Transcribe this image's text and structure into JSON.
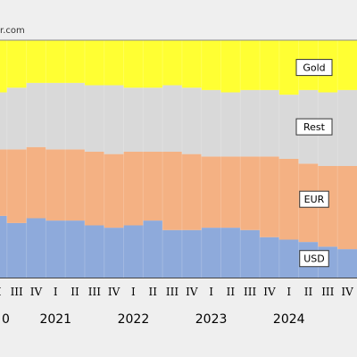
{
  "source_text": "r.com",
  "chart_data": {
    "type": "area",
    "stacked": true,
    "quarters": [
      "II",
      "III",
      "IV",
      "I",
      "II",
      "III",
      "IV",
      "I",
      "II",
      "III",
      "IV",
      "I",
      "II",
      "III",
      "IV",
      "I",
      "II",
      "III",
      "IV"
    ],
    "year_labels": [
      "0",
      "2021",
      "2022",
      "2023",
      "2024"
    ],
    "year_label_quarter_index": [
      0,
      3,
      7,
      11,
      15
    ],
    "ylim": [
      0,
      100
    ],
    "series": [
      {
        "name": "USD",
        "color": "#8eaadb",
        "values": [
          26,
          23,
          25,
          24,
          24,
          22,
          21,
          22,
          24,
          20,
          20,
          21,
          21,
          20,
          17,
          16,
          15,
          13,
          12
        ]
      },
      {
        "name": "EUR",
        "color": "#f4b183",
        "values": [
          28,
          31,
          30,
          30,
          30,
          31,
          31,
          31,
          29,
          33,
          32,
          30,
          30,
          31,
          34,
          34,
          33,
          34,
          35
        ]
      },
      {
        "name": "Rest",
        "color": "#d9d9d9",
        "values": [
          24,
          26,
          27,
          28,
          28,
          28,
          29,
          27,
          27,
          28,
          28,
          28,
          27,
          28,
          28,
          27,
          31,
          31,
          32
        ]
      },
      {
        "name": "Gold",
        "color": "#ffff33",
        "values": [
          22,
          20,
          18,
          18,
          18,
          19,
          19,
          20,
          20,
          19,
          20,
          21,
          22,
          21,
          21,
          23,
          21,
          22,
          21
        ]
      }
    ],
    "legend_labels": [
      "Gold",
      "Rest",
      "EUR",
      "USD"
    ]
  }
}
